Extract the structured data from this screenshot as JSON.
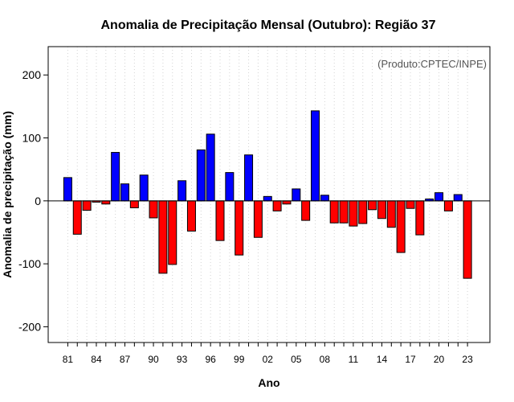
{
  "chart_data": {
    "type": "bar",
    "title": "Anomalia de Precipitação Mensal (Outubro): Região 37",
    "xlabel": "Ano",
    "ylabel": "Anomalia de precipitação (mm)",
    "credit": "(Produto:CPTEC/INPE)",
    "ylim": [
      -225,
      245
    ],
    "yticks": [
      -200,
      -100,
      0,
      100,
      200
    ],
    "years": [
      1981,
      1982,
      1983,
      1984,
      1985,
      1986,
      1987,
      1988,
      1989,
      1990,
      1991,
      1992,
      1993,
      1994,
      1995,
      1996,
      1997,
      1998,
      1999,
      2000,
      2001,
      2002,
      2003,
      2004,
      2005,
      2006,
      2007,
      2008,
      2009,
      2010,
      2011,
      2012,
      2013,
      2014,
      2015,
      2016,
      2017,
      2018,
      2019,
      2020,
      2021,
      2022,
      2023
    ],
    "values": [
      37,
      -53,
      -15,
      -2,
      -5,
      77,
      27,
      -11,
      41,
      -27,
      -115,
      -101,
      32,
      -48,
      81,
      106,
      -63,
      45,
      -86,
      73,
      -58,
      7,
      -16,
      -5,
      19,
      -31,
      143,
      9,
      -35,
      -35,
      -40,
      -36,
      -14,
      -28,
      -42,
      -82,
      -12,
      -54,
      3,
      13,
      -16,
      10,
      -123
    ],
    "xtick_labels": [
      "81",
      "84",
      "87",
      "90",
      "93",
      "96",
      "99",
      "02",
      "05",
      "08",
      "11",
      "14",
      "17",
      "20",
      "23"
    ],
    "xtick_years": [
      1981,
      1984,
      1987,
      1990,
      1993,
      1996,
      1999,
      2002,
      2005,
      2008,
      2011,
      2014,
      2017,
      2020,
      2023
    ],
    "colors": {
      "positive": "#0000ff",
      "negative": "#ff0000",
      "outline": "#000000",
      "grid": "#d3d3d3"
    },
    "grid": true
  }
}
